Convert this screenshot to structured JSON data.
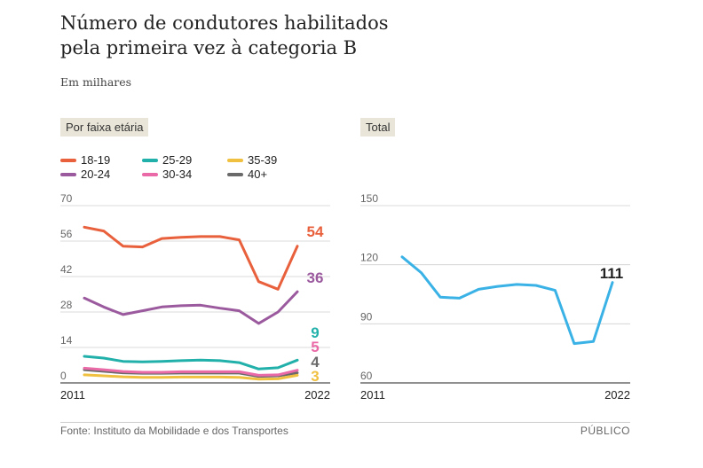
{
  "header": {
    "title_line1": "Número de condutores habilitados",
    "title_line2": "pela primeira vez à categoria B",
    "subtitle": "Em milhares"
  },
  "source": "Fonte: Instituto da Mobilidade e dos Transportes",
  "brand": "PÚBLICO",
  "colors": {
    "18-19": "#e8603c",
    "20-24": "#9b5a9e",
    "25-29": "#22b0aa",
    "30-34": "#ea6aa8",
    "35-39": "#f0c040",
    "40+": "#6a6a6a",
    "total": "#3ab2e6",
    "grid": "#cfcfcf",
    "axis": "#222222"
  },
  "chart_data": [
    {
      "type": "line",
      "title": "Por faixa etária",
      "x": [
        2011,
        2012,
        2013,
        2014,
        2015,
        2016,
        2017,
        2018,
        2019,
        2020,
        2021,
        2022
      ],
      "xtick_labels": [
        "2011",
        "2022"
      ],
      "ylim": [
        0,
        70
      ],
      "yticks": [
        0,
        14,
        28,
        42,
        56,
        70
      ],
      "legend_rows": [
        [
          "18-19",
          "25-29",
          "35-39"
        ],
        [
          "20-24",
          "30-34",
          "40+"
        ]
      ],
      "series": [
        {
          "name": "18-19",
          "values": [
            61.5,
            60,
            54,
            53.7,
            57,
            57.5,
            57.8,
            57.8,
            56.5,
            40,
            37,
            54
          ],
          "end_label": "54"
        },
        {
          "name": "20-24",
          "values": [
            33.5,
            30,
            27,
            28.5,
            30,
            30.5,
            30.7,
            29.5,
            28.5,
            23.5,
            28,
            36
          ],
          "end_label": "36"
        },
        {
          "name": "25-29",
          "values": [
            10.5,
            9.8,
            8.5,
            8.3,
            8.5,
            8.8,
            9,
            8.8,
            8,
            5.5,
            6,
            9
          ],
          "end_label": "9"
        },
        {
          "name": "30-34",
          "values": [
            5.8,
            5.2,
            4.5,
            4.2,
            4.2,
            4.4,
            4.4,
            4.4,
            4.4,
            3,
            3.2,
            5
          ],
          "end_label": "5"
        },
        {
          "name": "35-39",
          "values": [
            3.2,
            2.8,
            2.4,
            2.2,
            2.2,
            2.3,
            2.3,
            2.3,
            2.2,
            1.5,
            1.6,
            3
          ],
          "end_label": "3"
        },
        {
          "name": "40+",
          "values": [
            5.2,
            4.6,
            4,
            3.8,
            3.8,
            3.9,
            3.9,
            3.9,
            3.9,
            2.6,
            2.8,
            4
          ],
          "end_label": "4"
        }
      ]
    },
    {
      "type": "line",
      "title": "Total",
      "x": [
        2011,
        2012,
        2013,
        2014,
        2015,
        2016,
        2017,
        2018,
        2019,
        2020,
        2021,
        2022
      ],
      "xtick_labels": [
        "2011",
        "2022"
      ],
      "ylim": [
        60,
        150
      ],
      "yticks": [
        60,
        90,
        120,
        150
      ],
      "series": [
        {
          "name": "Total",
          "values": [
            124,
            116,
            103.5,
            103,
            107.5,
            109,
            110,
            109.5,
            107,
            80,
            81,
            111
          ],
          "end_label": "111"
        }
      ]
    }
  ]
}
